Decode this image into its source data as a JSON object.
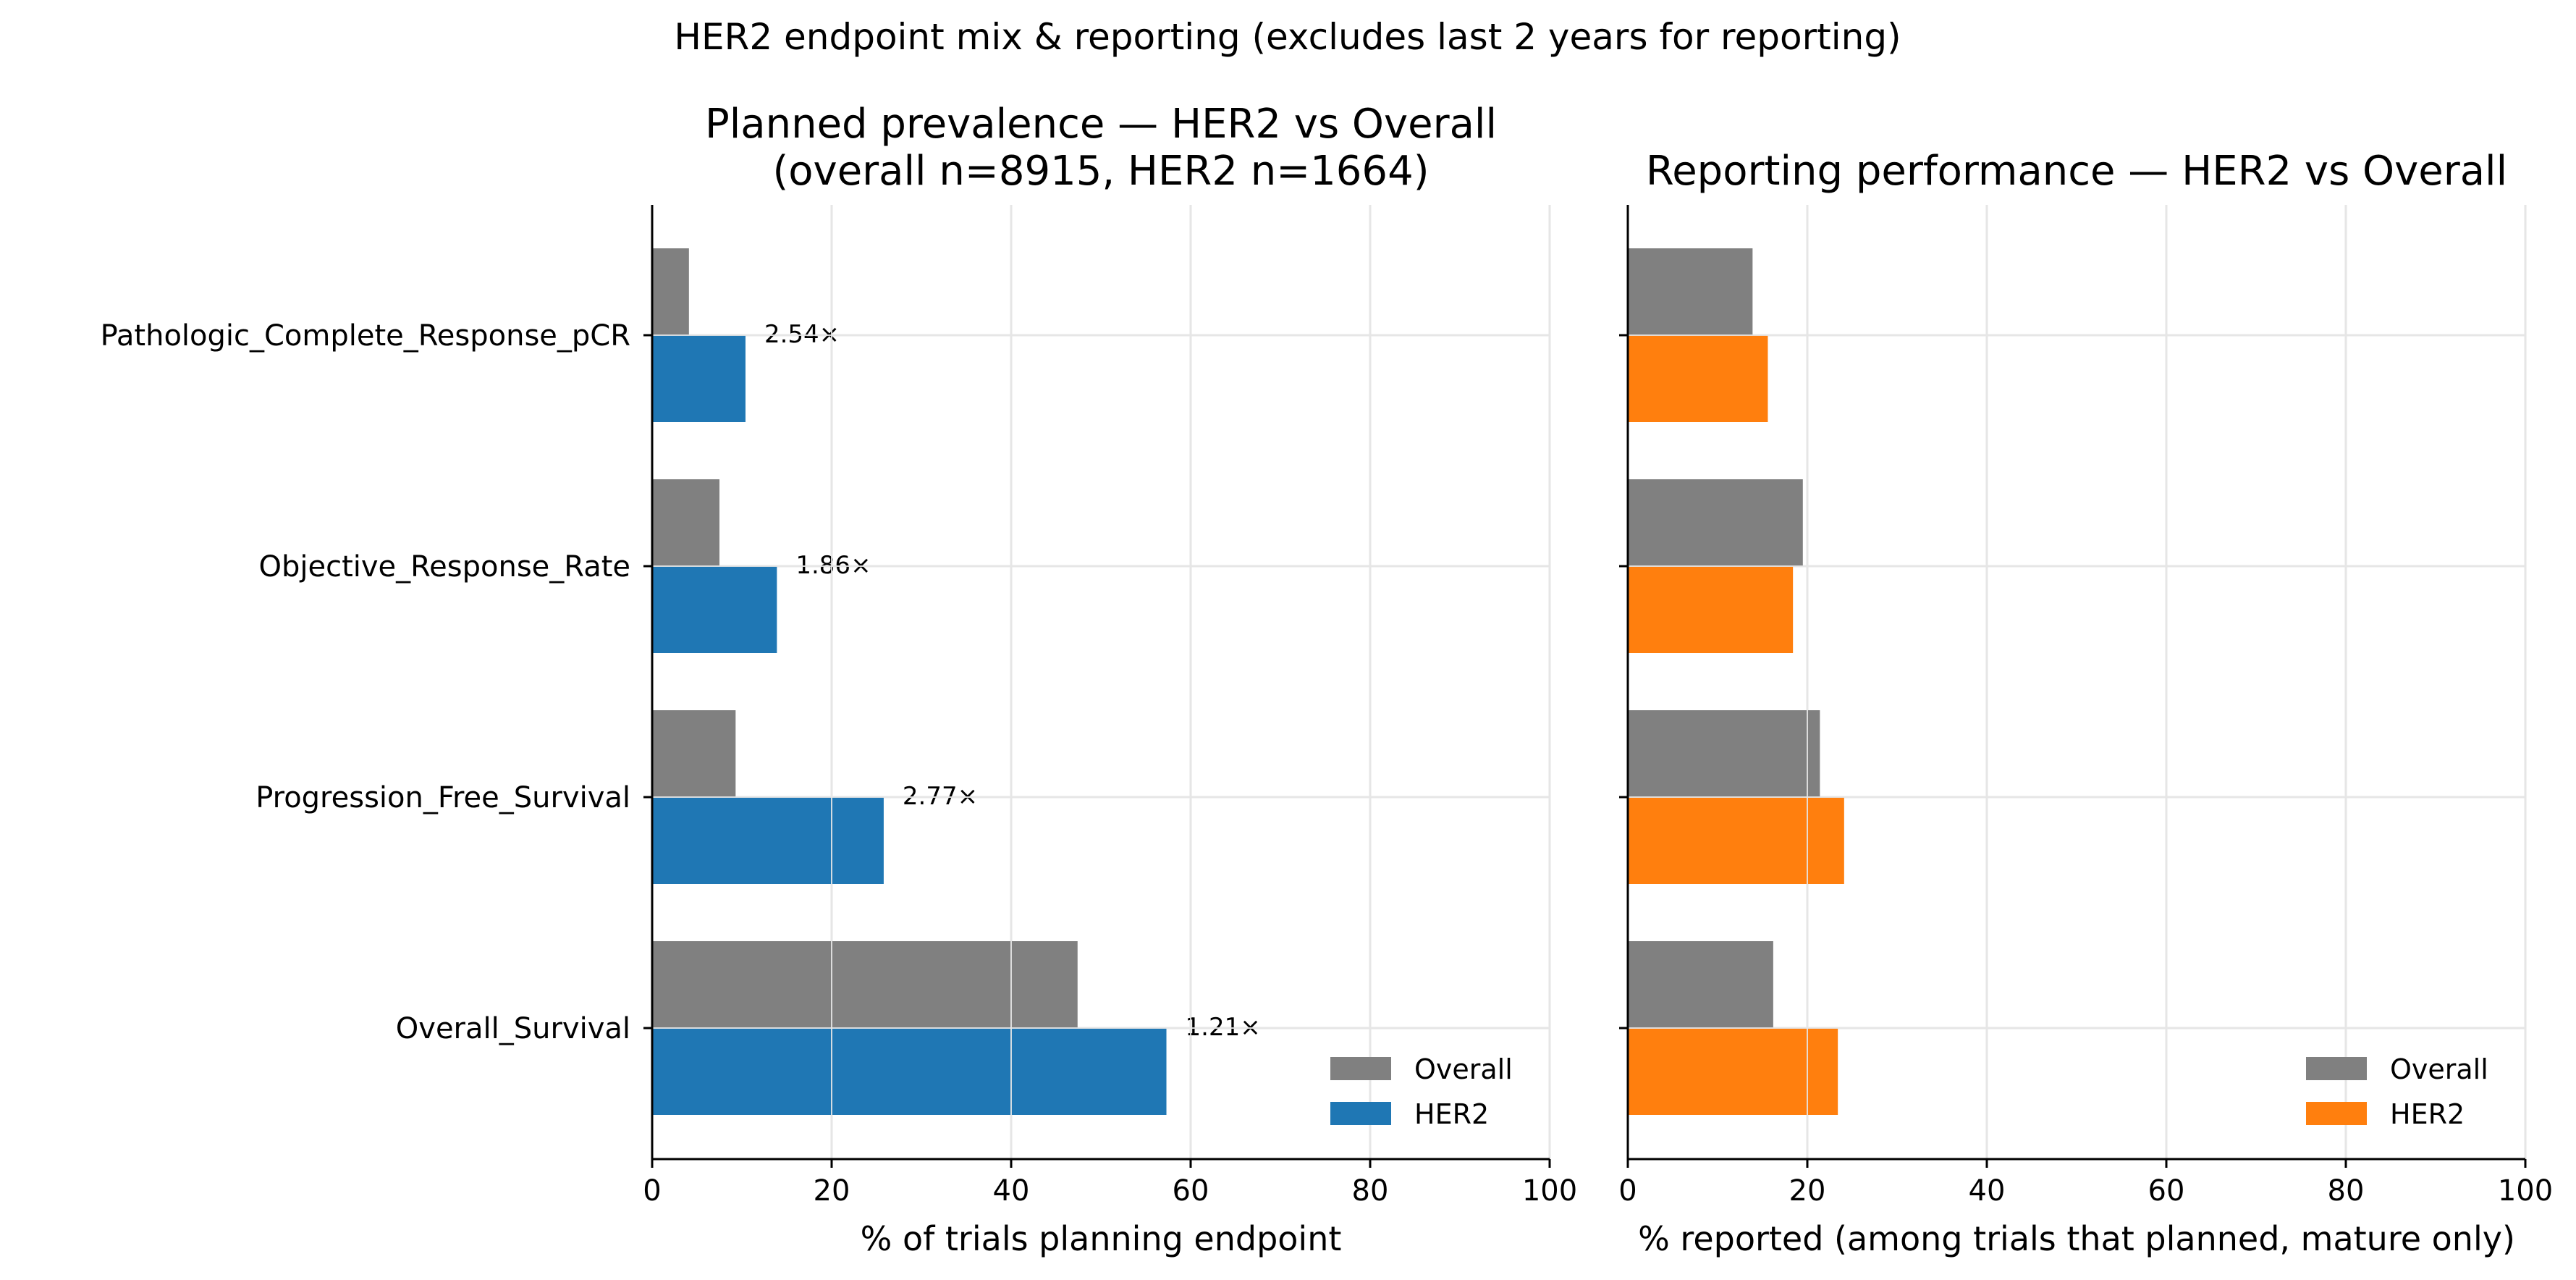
{
  "figure_title": "HER2 endpoint mix & reporting (excludes last 2 years for reporting)",
  "colors": {
    "overall": "#808080",
    "her2_prevalence": "#1f77b4",
    "her2_reporting": "#ff7f0e",
    "grid": "#e6e6e6"
  },
  "chart_data": [
    {
      "type": "bar",
      "orientation": "horizontal",
      "title_line1": "Planned prevalence — HER2 vs Overall",
      "title_line2": "(overall n=8915, HER2 n=1664)",
      "xlabel": "% of trials planning endpoint",
      "ylabel": "",
      "xlim": [
        0,
        100
      ],
      "xticks": [
        "0",
        "20",
        "40",
        "60",
        "80",
        "100"
      ],
      "grid": true,
      "legend_position": "bottom-right",
      "categories": [
        "Pathologic_Complete_Response_pCR",
        "Objective_Response_Rate",
        "Progression_Free_Survival",
        "Overall_Survival"
      ],
      "series": [
        {
          "name": "Overall",
          "values": [
            4.1,
            7.5,
            9.3,
            47.4
          ]
        },
        {
          "name": "HER2",
          "values": [
            10.4,
            13.9,
            25.8,
            57.3
          ]
        }
      ],
      "annotations": [
        "2.54×",
        "1.86×",
        "2.77×",
        "1.21×"
      ]
    },
    {
      "type": "bar",
      "orientation": "horizontal",
      "title_line1": "Reporting performance — HER2 vs Overall",
      "xlabel": "% reported (among trials that planned, mature only)",
      "ylabel": "",
      "xlim": [
        0,
        100
      ],
      "xticks": [
        "0",
        "20",
        "40",
        "60",
        "80",
        "100"
      ],
      "grid": true,
      "legend_position": "bottom-right",
      "categories": [
        "Pathologic_Complete_Response_pCR",
        "Objective_Response_Rate",
        "Progression_Free_Survival",
        "Overall_Survival"
      ],
      "series": [
        {
          "name": "Overall",
          "values": [
            13.9,
            19.5,
            21.4,
            16.2
          ]
        },
        {
          "name": "HER2",
          "values": [
            15.6,
            18.4,
            24.1,
            23.4
          ]
        }
      ]
    }
  ]
}
